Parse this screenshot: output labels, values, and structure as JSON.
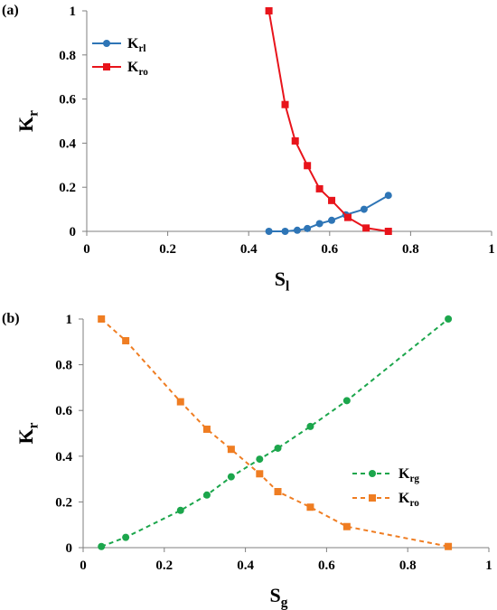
{
  "chart_data": [
    {
      "type": "line",
      "panel_label": "(a)",
      "title": "",
      "xlabel": "S",
      "xlabel_sub": "l",
      "ylabel": "K",
      "ylabel_sub": "r",
      "xlim": [
        0,
        1
      ],
      "ylim": [
        0,
        1
      ],
      "xticks": [
        0,
        0.2,
        0.4,
        0.6,
        0.8,
        1
      ],
      "yticks": [
        0,
        0.2,
        0.4,
        0.6,
        0.8,
        1
      ],
      "xtick_labels": [
        "0",
        "0.2",
        "0.4",
        "0.6",
        "0.8",
        "1"
      ],
      "ytick_labels": [
        "0",
        "0.2",
        "0.4",
        "0.6",
        "0.8",
        "1"
      ],
      "grid": false,
      "legend_position": "top-left",
      "series": [
        {
          "name": "K",
          "name_sub": "rl",
          "color": "#2e75b6",
          "marker": "circle",
          "line_style": "solid",
          "x": [
            0.45,
            0.49,
            0.52,
            0.545,
            0.575,
            0.605,
            0.64,
            0.685,
            0.745
          ],
          "y": [
            0.0,
            0.0,
            0.005,
            0.013,
            0.035,
            0.05,
            0.075,
            0.1,
            0.163
          ]
        },
        {
          "name": "K",
          "name_sub": "ro",
          "color": "#e8141b",
          "marker": "square",
          "line_style": "solid",
          "x": [
            0.45,
            0.49,
            0.515,
            0.545,
            0.575,
            0.605,
            0.645,
            0.69,
            0.745
          ],
          "y": [
            1.0,
            0.575,
            0.41,
            0.298,
            0.193,
            0.14,
            0.063,
            0.015,
            0.0
          ]
        }
      ]
    },
    {
      "type": "line",
      "panel_label": "(b)",
      "title": "",
      "xlabel": "S",
      "xlabel_sub": "g",
      "ylabel": "K",
      "ylabel_sub": "r",
      "xlim": [
        0,
        1
      ],
      "ylim": [
        0,
        1
      ],
      "xticks": [
        0,
        0.2,
        0.4,
        0.6,
        0.8,
        1
      ],
      "yticks": [
        0,
        0.2,
        0.4,
        0.6,
        0.8,
        1
      ],
      "xtick_labels": [
        "0",
        "0.2",
        "0.4",
        "0.6",
        "0.8",
        "1"
      ],
      "ytick_labels": [
        "0",
        "0.2",
        "0.4",
        "0.6",
        "0.8",
        "1"
      ],
      "grid": false,
      "legend_position": "center-right",
      "series": [
        {
          "name": "K",
          "name_sub": "rg",
          "color": "#1ca64c",
          "marker": "circle",
          "line_style": "dashed",
          "x": [
            0.045,
            0.105,
            0.24,
            0.305,
            0.365,
            0.435,
            0.48,
            0.56,
            0.65,
            0.9
          ],
          "y": [
            0.005,
            0.045,
            0.163,
            0.23,
            0.31,
            0.387,
            0.435,
            0.53,
            0.643,
            1.0
          ]
        },
        {
          "name": "K",
          "name_sub": "ro",
          "color": "#ef7d22",
          "marker": "square",
          "line_style": "dashed",
          "x": [
            0.045,
            0.105,
            0.24,
            0.305,
            0.365,
            0.435,
            0.48,
            0.56,
            0.65,
            0.9
          ],
          "y": [
            1.0,
            0.905,
            0.638,
            0.518,
            0.43,
            0.323,
            0.245,
            0.177,
            0.092,
            0.005
          ]
        }
      ]
    }
  ]
}
